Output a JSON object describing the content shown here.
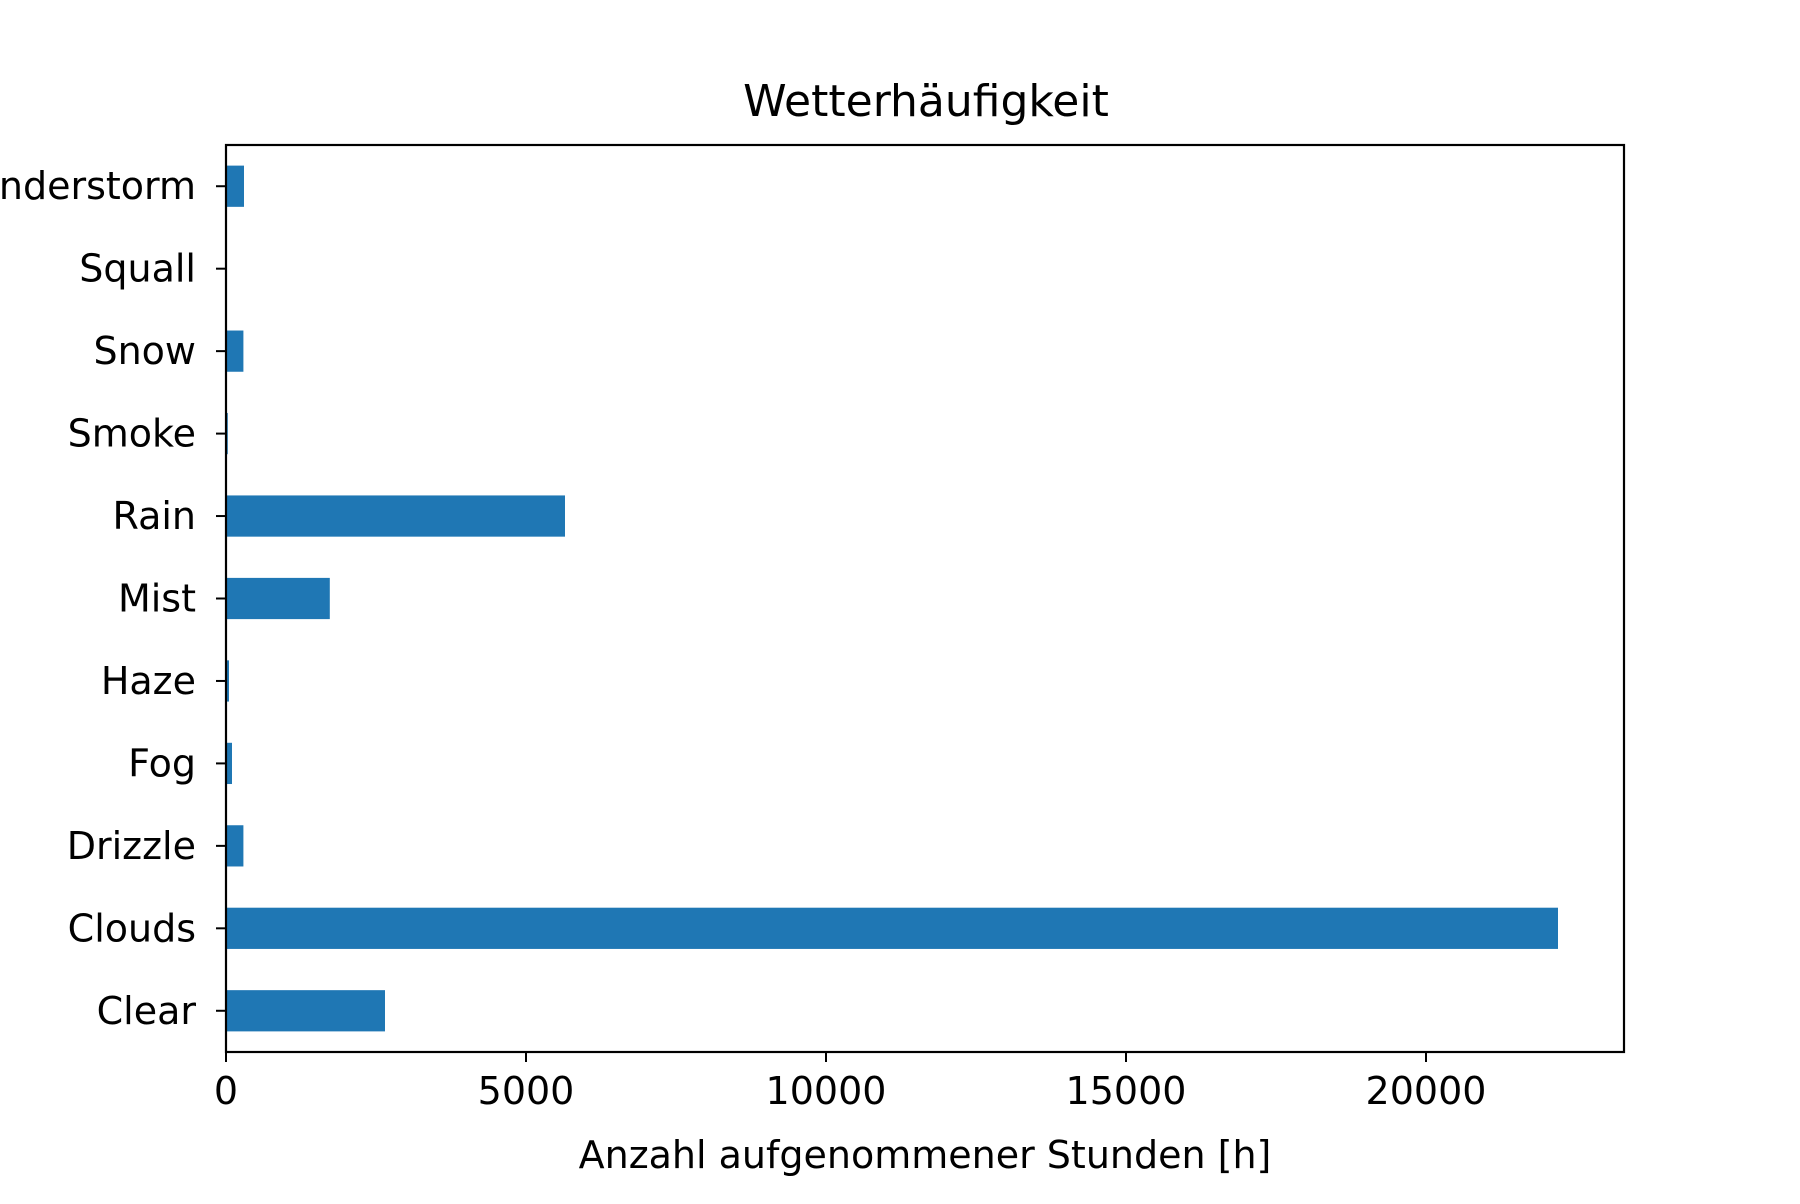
{
  "chart_data": {
    "type": "bar",
    "orientation": "horizontal",
    "title": "Wetterhäufigkeit",
    "xlabel": "Anzahl aufgenommener Stunden [h]",
    "ylabel": "",
    "categories": [
      "Clear",
      "Clouds",
      "Drizzle",
      "Fog",
      "Haze",
      "Mist",
      "Rain",
      "Smoke",
      "Snow",
      "Squall",
      "Thunderstorm"
    ],
    "values": [
      2650,
      22200,
      290,
      100,
      50,
      1730,
      5650,
      30,
      290,
      5,
      300
    ],
    "xlim": [
      0,
      23300
    ],
    "xticks": [
      0,
      5000,
      10000,
      15000,
      20000
    ],
    "xtick_labels": [
      "0",
      "5000",
      "10000",
      "15000",
      "20000"
    ],
    "grid": false,
    "legend": "none",
    "bar_color": "#1f77b4"
  }
}
